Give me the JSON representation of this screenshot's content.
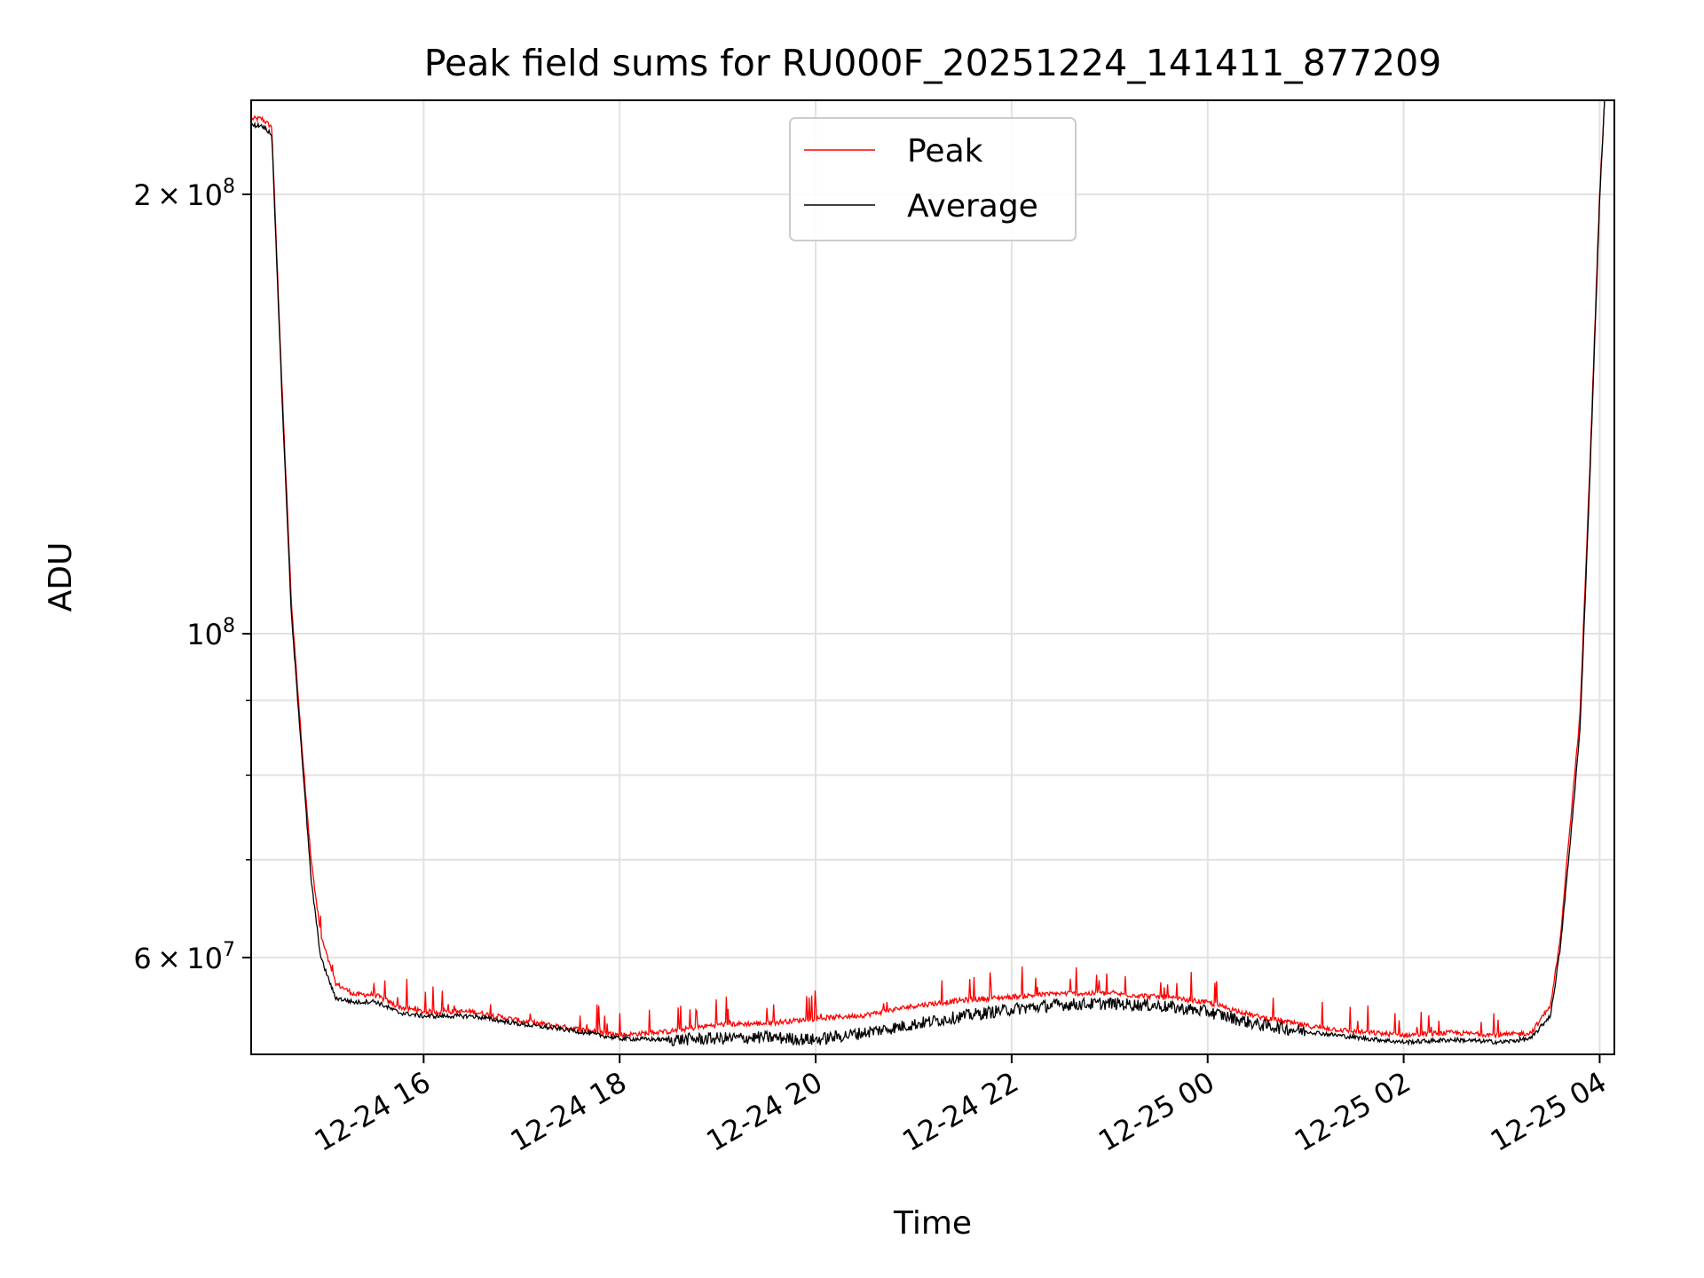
{
  "chart_data": {
    "type": "line",
    "title": "Peak field sums for RU000F_20251224_141411_877209",
    "xlabel": "Time",
    "ylabel": "ADU",
    "yscale": "log",
    "ylim": [
      51500000,
      232000000
    ],
    "xlim_hours": [
      14.24,
      28.15
    ],
    "grid": true,
    "legend_position": "top-center",
    "x_ticks": [
      {
        "label": "12-24 16",
        "hour": 16
      },
      {
        "label": "12-24 18",
        "hour": 18
      },
      {
        "label": "12-24 20",
        "hour": 20
      },
      {
        "label": "12-24 22",
        "hour": 22
      },
      {
        "label": "12-25 00",
        "hour": 24
      },
      {
        "label": "12-25 02",
        "hour": 26
      },
      {
        "label": "12-25 04",
        "hour": 28
      }
    ],
    "y_major_ticks": [
      {
        "value": 60000000,
        "mantissa": "6",
        "base": "10",
        "exp": "7"
      },
      {
        "value": 100000000,
        "mantissa": "",
        "base": "10",
        "exp": "8"
      },
      {
        "value": 200000000,
        "mantissa": "2",
        "base": "10",
        "exp": "8"
      }
    ],
    "y_minor_grid": [
      70000000,
      80000000,
      90000000
    ],
    "series": [
      {
        "name": "Peak",
        "color": "#ff0000",
        "hours": [
          14.25,
          14.35,
          14.45,
          14.55,
          14.65,
          14.75,
          14.85,
          14.95,
          15.1,
          15.3,
          15.5,
          15.75,
          16.0,
          16.5,
          17.0,
          17.5,
          18.0,
          18.5,
          19.0,
          19.5,
          20.0,
          20.5,
          21.0,
          21.5,
          22.0,
          22.5,
          23.0,
          23.5,
          24.0,
          24.5,
          25.0,
          25.5,
          26.0,
          26.5,
          27.0,
          27.3,
          27.5,
          27.6,
          27.7,
          27.8,
          27.9,
          28.0,
          28.05
        ],
        "values": [
          225000000,
          225000000,
          222000000,
          150000000,
          105000000,
          85000000,
          70000000,
          62000000,
          57500000,
          56500000,
          56500000,
          55400000,
          55000000,
          55000000,
          54200000,
          53600000,
          53000000,
          53300000,
          53900000,
          54000000,
          54400000,
          54700000,
          55500000,
          56000000,
          56300000,
          56600000,
          56600000,
          56300000,
          55800000,
          54600000,
          53800000,
          53300000,
          53000000,
          53200000,
          53000000,
          53200000,
          55500000,
          62000000,
          74000000,
          88000000,
          130000000,
          200000000,
          232000000
        ]
      },
      {
        "name": "Average",
        "color": "#000000",
        "hours": [
          14.25,
          14.35,
          14.45,
          14.55,
          14.65,
          14.75,
          14.85,
          14.95,
          15.1,
          15.3,
          15.5,
          15.75,
          16.0,
          16.5,
          17.0,
          17.5,
          18.0,
          18.5,
          19.0,
          19.5,
          20.0,
          20.5,
          21.0,
          21.5,
          22.0,
          22.5,
          23.0,
          23.5,
          24.0,
          24.5,
          25.0,
          25.5,
          26.0,
          26.5,
          27.0,
          27.3,
          27.5,
          27.6,
          27.7,
          27.8,
          27.9,
          28.0,
          28.05
        ],
        "values": [
          223000000,
          223000000,
          220000000,
          148000000,
          103000000,
          84000000,
          68000000,
          60000000,
          56300000,
          55900000,
          56000000,
          55000000,
          54700000,
          54700000,
          54000000,
          53500000,
          52800000,
          52700000,
          52800000,
          52900000,
          52700000,
          53300000,
          54000000,
          54700000,
          55300000,
          55700000,
          55800000,
          55600000,
          55100000,
          54000000,
          53400000,
          52900000,
          52500000,
          52700000,
          52500000,
          52800000,
          54800000,
          61000000,
          72000000,
          86000000,
          128000000,
          198000000,
          232000000
        ]
      }
    ]
  }
}
